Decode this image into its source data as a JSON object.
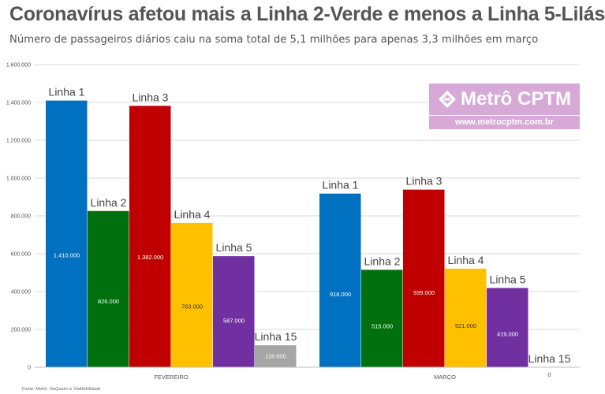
{
  "header": {
    "title": "Coronavírus afetou mais a Linha 2-Verde e menos a Linha 5-Lilás",
    "subtitle": "Número de passageiros diários caiu na soma total de 5,1 milhões para apenas 3,3 milhões em março"
  },
  "logo": {
    "name": "Metrô CPTM",
    "url": "www.metrocptm.com.br"
  },
  "source": "Fonte: Metrô, ViaQuatro e ViaMobilidade",
  "chart_data": {
    "type": "bar",
    "categories": [
      "FEVEREIRO",
      "MARÇO"
    ],
    "series": [
      {
        "name": "Linha 1",
        "color": "#0070c0",
        "values": [
          1410000,
          918000
        ],
        "value_labels": [
          "1.410.000",
          "918.000"
        ]
      },
      {
        "name": "Linha 2",
        "color": "#00700e",
        "values": [
          826000,
          515000
        ],
        "value_labels": [
          "826.000",
          "515.000"
        ]
      },
      {
        "name": "Linha 3",
        "color": "#c00000",
        "values": [
          1382000,
          939000
        ],
        "value_labels": [
          "1.382.000",
          "939.000"
        ]
      },
      {
        "name": "Linha 4",
        "color": "#ffc000",
        "values": [
          763000,
          521000
        ],
        "value_labels": [
          "763.000",
          "521.000"
        ]
      },
      {
        "name": "Linha 5",
        "color": "#7030a0",
        "values": [
          587000,
          419000
        ],
        "value_labels": [
          "587.000",
          "419.000"
        ]
      },
      {
        "name": "Linha 15",
        "color": "#a6a6a6",
        "values": [
          116000,
          0
        ],
        "value_labels": [
          "116.000",
          "0"
        ]
      }
    ],
    "ylim": [
      0,
      1600000
    ],
    "y_ticks": [
      0,
      200000,
      400000,
      600000,
      800000,
      1000000,
      1200000,
      1400000,
      1600000
    ],
    "y_tick_labels": [
      "0",
      "200.000",
      "400.000",
      "600.000",
      "800.000",
      "1.000.000",
      "1.200.000",
      "1.400.000",
      "1.600.000"
    ],
    "grid": true,
    "legend": "none",
    "xlabel": "",
    "ylabel": ""
  }
}
